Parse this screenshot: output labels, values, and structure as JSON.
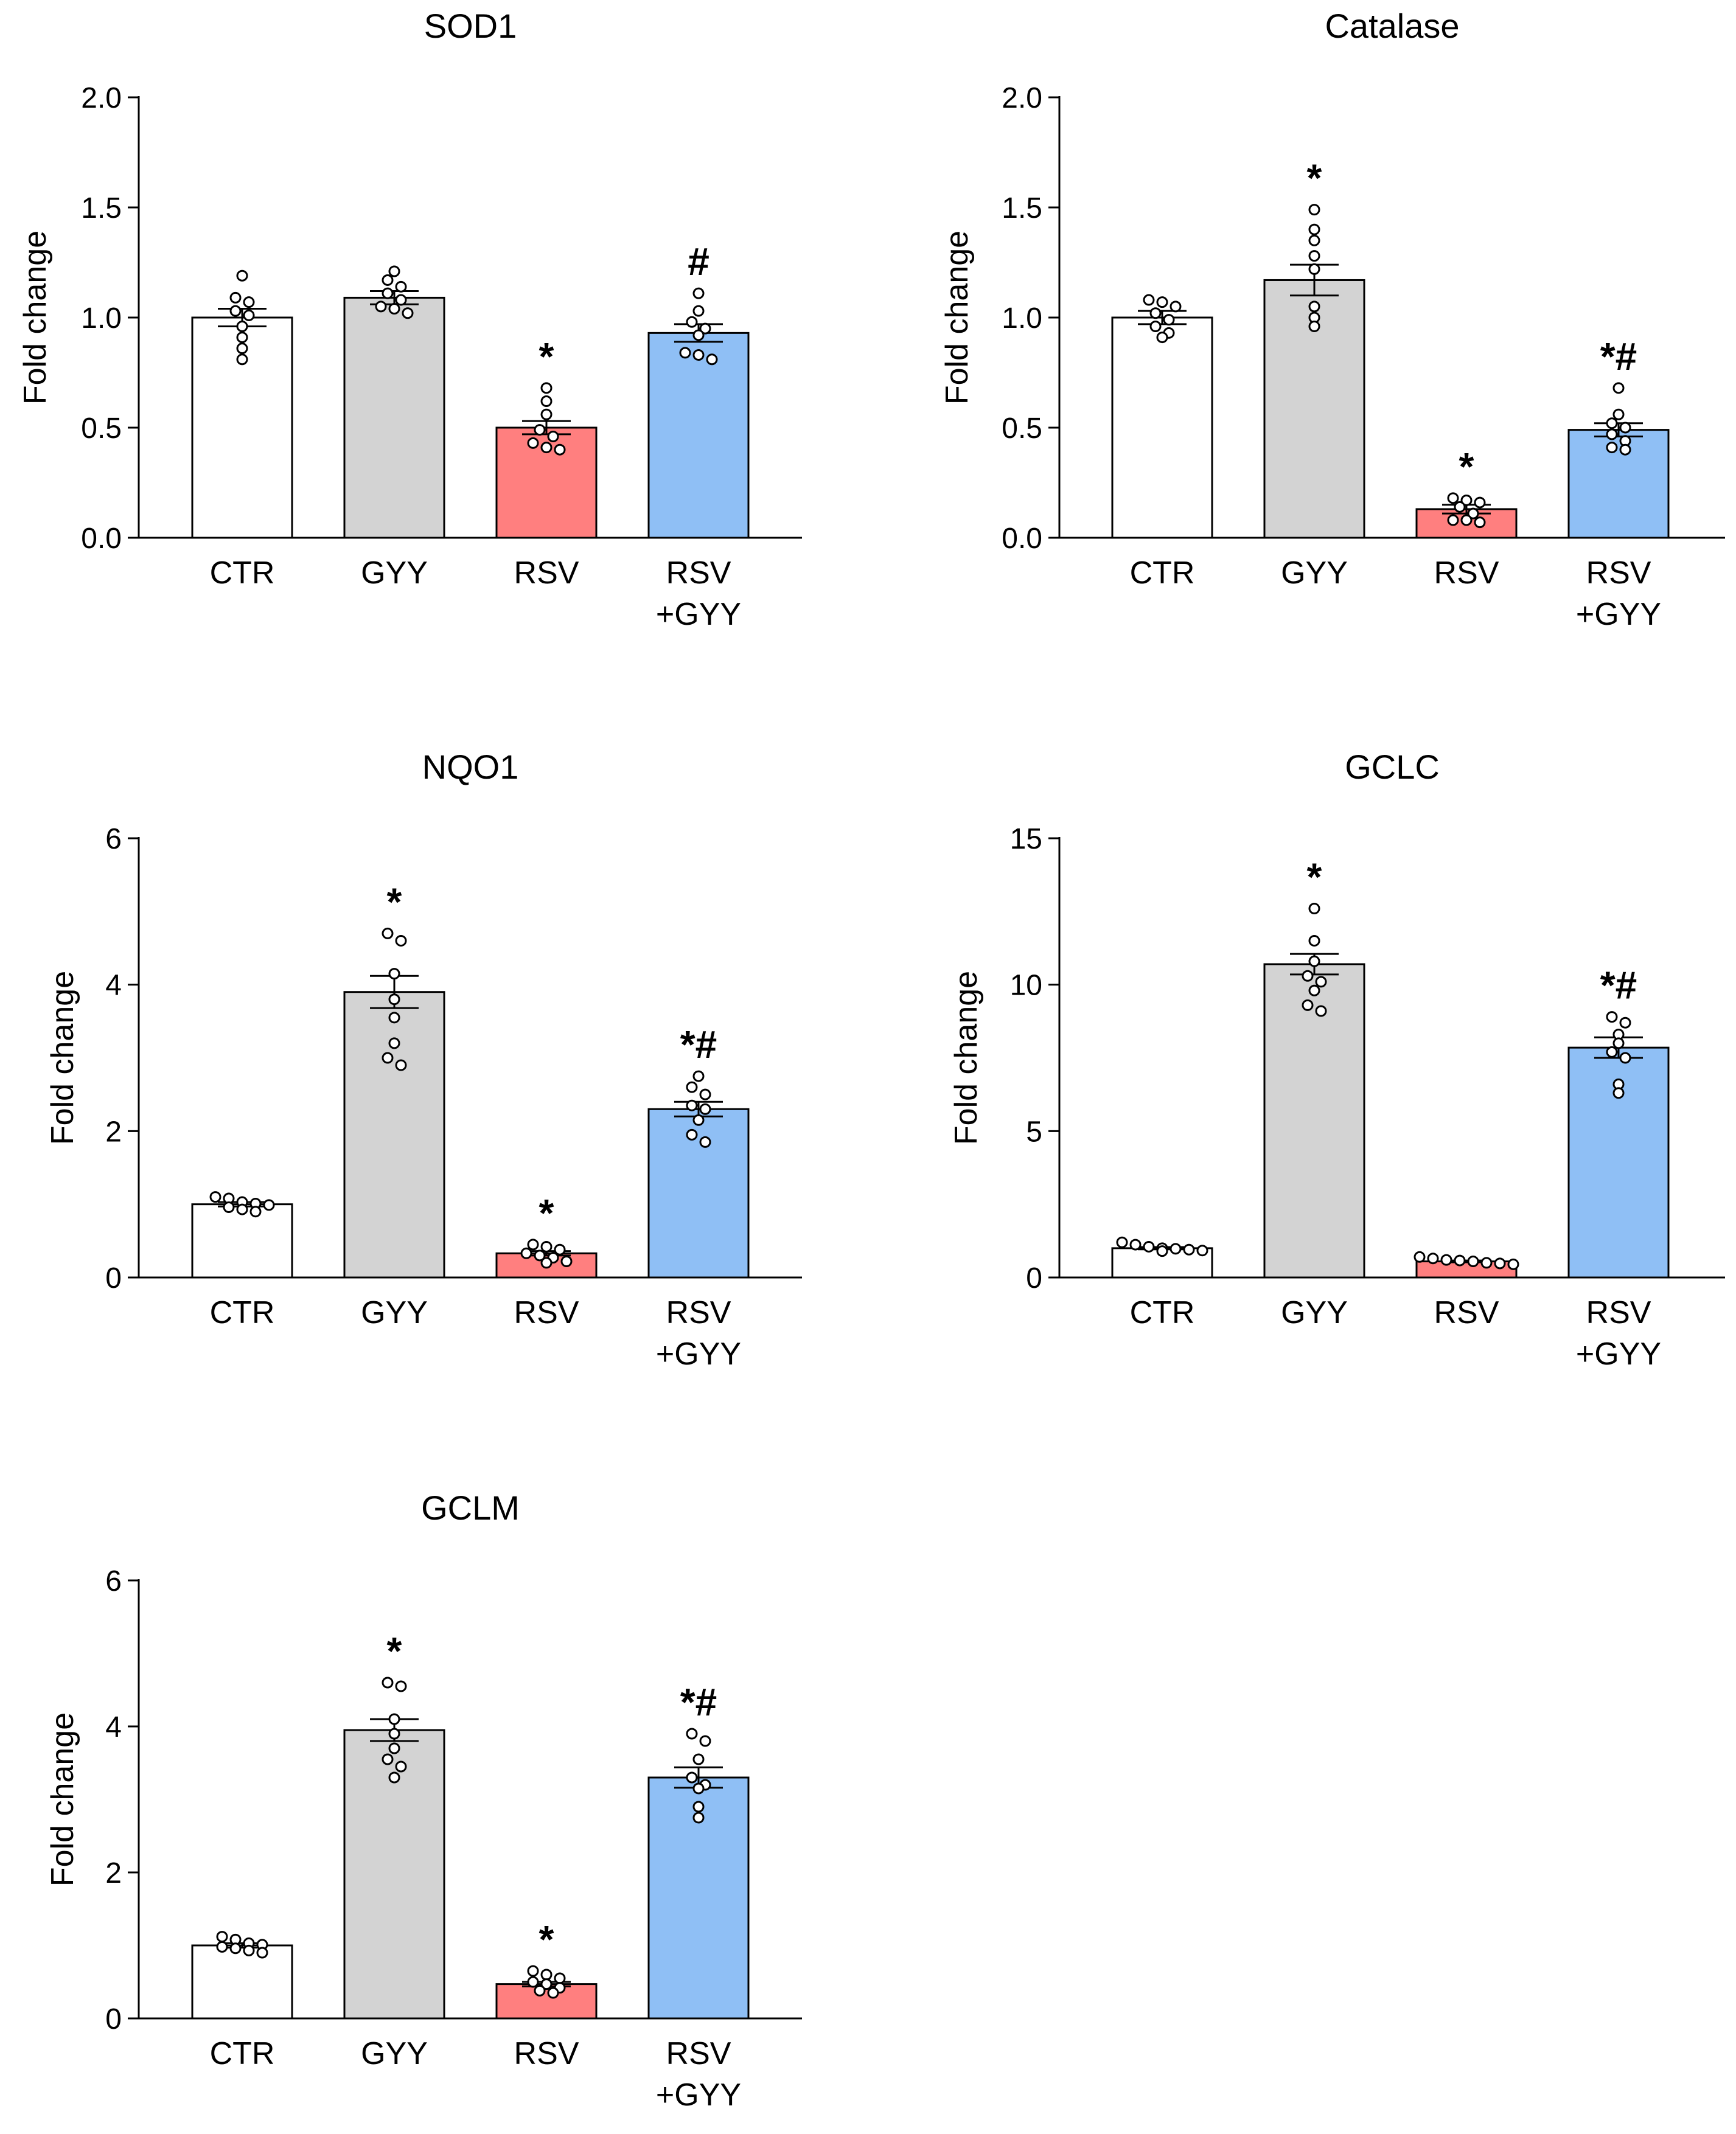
{
  "figure": {
    "colors": {
      "CTR": "#ffffff",
      "GYY": "#d3d3d3",
      "RSV": "#ff7f7f",
      "RSV+GYY": "#8fbff5",
      "axis": "#000000"
    }
  },
  "chart_data": [
    {
      "type": "bar",
      "title": "SOD1",
      "ylabel": "Fold change",
      "categories": [
        [
          "CTR"
        ],
        [
          "GYY"
        ],
        [
          "RSV"
        ],
        [
          "RSV",
          "+GYY"
        ]
      ],
      "ylim": [
        0,
        2.0
      ],
      "yticks": [
        "0.0",
        "0.5",
        "1.0",
        "1.5",
        "2.0"
      ],
      "yticks_values": [
        0,
        0.5,
        1.0,
        1.5,
        2.0
      ],
      "values": [
        1.0,
        1.09,
        0.5,
        0.93
      ],
      "sem": [
        0.04,
        0.03,
        0.03,
        0.04
      ],
      "points": [
        [
          1.19,
          1.09,
          1.07,
          1.03,
          1.01,
          0.96,
          0.91,
          0.86,
          0.81
        ],
        [
          1.21,
          1.17,
          1.14,
          1.11,
          1.08,
          1.05,
          1.04,
          1.02
        ],
        [
          0.68,
          0.62,
          0.56,
          0.49,
          0.46,
          0.43,
          0.41,
          0.4
        ],
        [
          1.11,
          1.03,
          0.98,
          0.95,
          0.92,
          0.84,
          0.83,
          0.81
        ]
      ],
      "annotations": [
        "",
        "",
        "*",
        "#"
      ]
    },
    {
      "type": "bar",
      "title": "Catalase",
      "ylabel": "Fold change",
      "categories": [
        [
          "CTR"
        ],
        [
          "GYY"
        ],
        [
          "RSV"
        ],
        [
          "RSV",
          "+GYY"
        ]
      ],
      "ylim": [
        0,
        2.0
      ],
      "yticks": [
        "0.0",
        "0.5",
        "1.0",
        "1.5",
        "2.0"
      ],
      "yticks_values": [
        0,
        0.5,
        1.0,
        1.5,
        2.0
      ],
      "values": [
        1.0,
        1.17,
        0.13,
        0.49
      ],
      "sem": [
        0.03,
        0.07,
        0.02,
        0.03
      ],
      "points": [
        [
          1.08,
          1.07,
          1.05,
          1.02,
          0.99,
          0.96,
          0.93,
          0.91
        ],
        [
          1.49,
          1.4,
          1.35,
          1.28,
          1.22,
          1.05,
          1.0,
          0.96
        ],
        [
          0.18,
          0.17,
          0.16,
          0.14,
          0.11,
          0.08,
          0.08,
          0.07
        ],
        [
          0.68,
          0.56,
          0.52,
          0.5,
          0.47,
          0.44,
          0.41,
          0.4
        ]
      ],
      "annotations": [
        "",
        "*",
        "*",
        "*#"
      ]
    },
    {
      "type": "bar",
      "title": "NQO1",
      "ylabel": "Fold change",
      "categories": [
        [
          "CTR"
        ],
        [
          "GYY"
        ],
        [
          "RSV"
        ],
        [
          "RSV",
          "+GYY"
        ]
      ],
      "ylim": [
        0,
        6
      ],
      "yticks": [
        "0",
        "2",
        "4",
        "6"
      ],
      "yticks_values": [
        0,
        2,
        4,
        6
      ],
      "values": [
        1.0,
        3.9,
        0.33,
        2.3
      ],
      "sem": [
        0.03,
        0.22,
        0.03,
        0.1
      ],
      "points": [
        [
          1.1,
          1.08,
          1.03,
          1.01,
          0.99,
          0.96,
          0.93,
          0.9
        ],
        [
          4.7,
          4.6,
          4.15,
          3.8,
          3.55,
          3.2,
          3.0,
          2.9
        ],
        [
          0.45,
          0.42,
          0.38,
          0.33,
          0.3,
          0.27,
          0.22,
          0.2
        ],
        [
          2.75,
          2.6,
          2.5,
          2.35,
          2.3,
          2.15,
          1.95,
          1.85
        ]
      ],
      "annotations": [
        "",
        "*",
        "*",
        "*#"
      ]
    },
    {
      "type": "bar",
      "title": "GCLC",
      "ylabel": "Fold change",
      "categories": [
        [
          "CTR"
        ],
        [
          "GYY"
        ],
        [
          "RSV"
        ],
        [
          "RSV",
          "+GYY"
        ]
      ],
      "ylim": [
        0,
        15
      ],
      "yticks": [
        "0",
        "5",
        "10",
        "15"
      ],
      "yticks_values": [
        0,
        5,
        10,
        15
      ],
      "values": [
        1.0,
        10.7,
        0.55,
        7.85
      ],
      "sem": [
        0.04,
        0.35,
        0.03,
        0.35
      ],
      "points": [
        [
          1.2,
          1.12,
          1.05,
          1.0,
          0.98,
          0.95,
          0.92,
          0.9
        ],
        [
          12.6,
          11.5,
          10.8,
          10.3,
          10.1,
          9.8,
          9.3,
          9.1
        ],
        [
          0.7,
          0.65,
          0.6,
          0.58,
          0.55,
          0.5,
          0.48,
          0.45
        ],
        [
          8.9,
          8.7,
          8.3,
          8.0,
          7.7,
          7.5,
          6.6,
          6.3
        ]
      ],
      "annotations": [
        "",
        "*",
        "",
        "*#"
      ]
    },
    {
      "type": "bar",
      "title": "GCLM",
      "ylabel": "Fold change",
      "categories": [
        [
          "CTR"
        ],
        [
          "GYY"
        ],
        [
          "RSV"
        ],
        [
          "RSV",
          "+GYY"
        ]
      ],
      "ylim": [
        0,
        6
      ],
      "yticks": [
        "0",
        "2",
        "4",
        "6"
      ],
      "yticks_values": [
        0,
        2,
        4,
        6
      ],
      "values": [
        1.0,
        3.95,
        0.47,
        3.3
      ],
      "sem": [
        0.03,
        0.15,
        0.03,
        0.14
      ],
      "points": [
        [
          1.12,
          1.08,
          1.03,
          1.01,
          0.98,
          0.96,
          0.93,
          0.9
        ],
        [
          4.6,
          4.55,
          4.1,
          3.9,
          3.7,
          3.55,
          3.45,
          3.3
        ],
        [
          0.65,
          0.6,
          0.55,
          0.5,
          0.47,
          0.42,
          0.38,
          0.35
        ],
        [
          3.9,
          3.8,
          3.55,
          3.3,
          3.2,
          3.15,
          2.9,
          2.75
        ]
      ],
      "annotations": [
        "",
        "*",
        "*",
        "*#"
      ]
    }
  ]
}
